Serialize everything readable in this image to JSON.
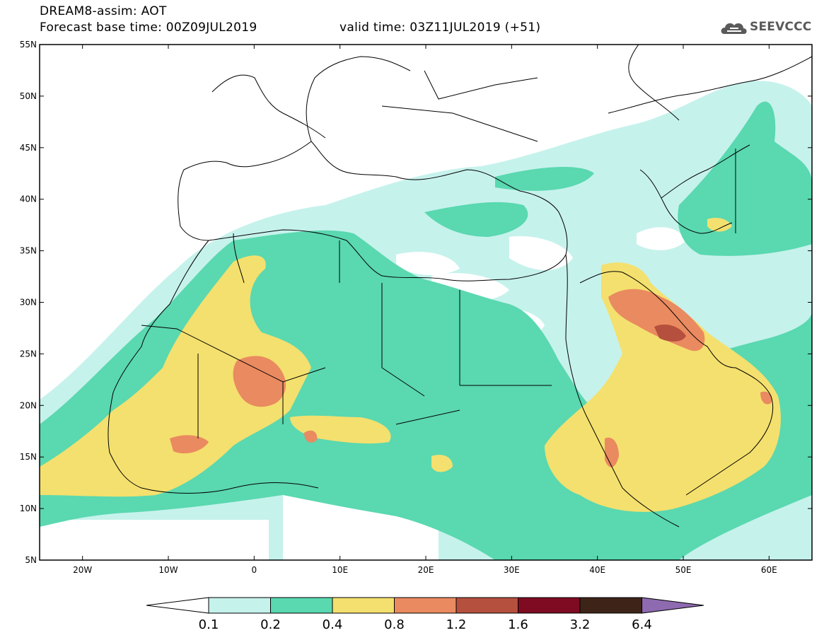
{
  "header": {
    "line1": "DREAM8-assim: AOT",
    "line2": "Forecast base time: 00Z09JUL2019",
    "valid": "valid time: 03Z11JUL2019 (+51)"
  },
  "logo": {
    "text": "SEEVCCC",
    "icon": "cloud-icon"
  },
  "map": {
    "lat_labels": [
      "55N",
      "50N",
      "45N",
      "40N",
      "35N",
      "30N",
      "25N",
      "20N",
      "15N",
      "10N",
      "5N"
    ],
    "lon_labels": [
      "20W",
      "10W",
      "0",
      "10E",
      "20E",
      "30E",
      "40E",
      "50E",
      "60E"
    ],
    "lon_range": [
      -25,
      65
    ],
    "lat_range": [
      5,
      55
    ]
  },
  "colorbar": {
    "labels": [
      "0.1",
      "0.2",
      "0.4",
      "0.8",
      "1.2",
      "1.6",
      "3.2",
      "6.4"
    ],
    "colors": [
      "#ffffff",
      "#c6f2ec",
      "#5ad8b0",
      "#f4e06e",
      "#ea8a60",
      "#b5503e",
      "#7e0b22",
      "#3e2418",
      "#8e6ab0"
    ]
  },
  "colors": {
    "c1": "#c6f2ec",
    "c2": "#5ad8b0",
    "c3": "#f4e06e",
    "c4": "#ea8a60",
    "c5": "#b5503e",
    "border": "#000000"
  }
}
